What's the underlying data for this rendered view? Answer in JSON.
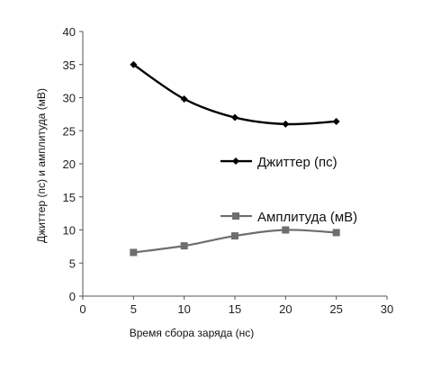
{
  "chart_data": {
    "type": "line",
    "title": "",
    "xlabel": "Время сбора заряда (нс)",
    "ylabel": "Джиттер (пс) и амплитуда (мВ)",
    "xlim": [
      0,
      30
    ],
    "ylim": [
      0,
      40
    ],
    "x_ticks": [
      "0",
      "5",
      "10",
      "15",
      "20",
      "25",
      "30"
    ],
    "y_ticks": [
      "0",
      "5",
      "10",
      "15",
      "20",
      "25",
      "30",
      "35",
      "40"
    ],
    "grid": false,
    "legend_position": "inside-right",
    "series": [
      {
        "name": "Джиттер (пс)",
        "marker": "diamond",
        "color": "#000000",
        "x": [
          5,
          10,
          15,
          20,
          25
        ],
        "y": [
          35,
          29.8,
          27,
          26,
          26.4
        ]
      },
      {
        "name": "Амплитуда (мВ)",
        "marker": "square",
        "color": "#6e6e6e",
        "x": [
          5,
          10,
          15,
          20,
          25
        ],
        "y": [
          6.6,
          7.6,
          9.1,
          10,
          9.6
        ]
      }
    ]
  }
}
